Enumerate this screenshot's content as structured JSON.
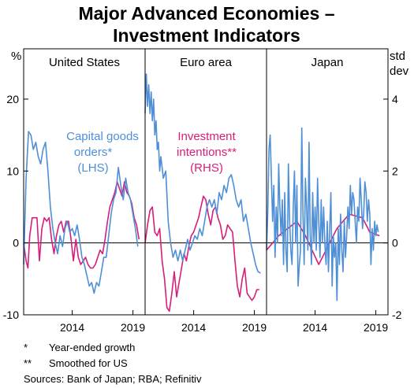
{
  "chart_data": {
    "type": "line",
    "title": [
      "Major Advanced Economies –",
      "Investment Indicators"
    ],
    "left_unit": "%",
    "right_unit": [
      "std",
      "dev"
    ],
    "left_ticks": [
      "20",
      "10",
      "0",
      "-10"
    ],
    "right_ticks": [
      "4",
      "2",
      "0",
      "-2"
    ],
    "left_range": [
      -10,
      27
    ],
    "right_range": [
      -2,
      5.4
    ],
    "x_range": [
      2010.0,
      2020.0
    ],
    "x_ticks": [
      {
        "value": 2014,
        "label": "2014"
      },
      {
        "value": 2019,
        "label": "2019"
      }
    ],
    "grid": "horizontal zero line",
    "colors": {
      "capital_goods": "#4f8fd6",
      "investment_intentions": "#d61e7a"
    },
    "annotations": {
      "capital_goods": [
        "Capital goods",
        "orders*",
        "(LHS)"
      ],
      "investment_intentions": [
        "Investment",
        "intentions**",
        "(RHS)"
      ]
    },
    "panels": [
      {
        "title": "United States",
        "capital_goods_orders_pct": [
          [
            2010.0,
            -3
          ],
          [
            2010.2,
            9
          ],
          [
            2010.4,
            15.5
          ],
          [
            2010.6,
            15
          ],
          [
            2010.8,
            13
          ],
          [
            2011.0,
            14
          ],
          [
            2011.2,
            12
          ],
          [
            2011.4,
            11
          ],
          [
            2011.6,
            13
          ],
          [
            2011.8,
            14
          ],
          [
            2012.0,
            10
          ],
          [
            2012.2,
            5
          ],
          [
            2012.4,
            2
          ],
          [
            2012.6,
            0
          ],
          [
            2012.8,
            -1.5
          ],
          [
            2013.0,
            1
          ],
          [
            2013.2,
            -0.5
          ],
          [
            2013.4,
            2
          ],
          [
            2013.6,
            3
          ],
          [
            2013.8,
            1.5
          ],
          [
            2014.0,
            2
          ],
          [
            2014.2,
            1
          ],
          [
            2014.4,
            2.5
          ],
          [
            2014.6,
            0.5
          ],
          [
            2014.8,
            -2
          ],
          [
            2015.0,
            -3
          ],
          [
            2015.2,
            -4.5
          ],
          [
            2015.4,
            -6
          ],
          [
            2015.6,
            -5.5
          ],
          [
            2015.8,
            -7
          ],
          [
            2016.0,
            -5.5
          ],
          [
            2016.2,
            -6
          ],
          [
            2016.4,
            -4
          ],
          [
            2016.6,
            -2
          ],
          [
            2016.8,
            -2
          ],
          [
            2017.0,
            1
          ],
          [
            2017.2,
            4
          ],
          [
            2017.4,
            6
          ],
          [
            2017.6,
            7
          ],
          [
            2017.8,
            10.5
          ],
          [
            2018.0,
            8
          ],
          [
            2018.2,
            6
          ],
          [
            2018.4,
            9
          ],
          [
            2018.6,
            7
          ],
          [
            2018.8,
            6
          ],
          [
            2019.0,
            4
          ],
          [
            2019.2,
            2
          ],
          [
            2019.4,
            -0.5
          ]
        ],
        "investment_intentions_std": [
          [
            2010.0,
            0
          ],
          [
            2010.2,
            -0.5
          ],
          [
            2010.35,
            -0.7
          ],
          [
            2010.5,
            0.2
          ],
          [
            2010.7,
            0.7
          ],
          [
            2010.9,
            0.7
          ],
          [
            2011.1,
            0.7
          ],
          [
            2011.3,
            -0.5
          ],
          [
            2011.5,
            0.4
          ],
          [
            2011.7,
            0.7
          ],
          [
            2011.9,
            0.6
          ],
          [
            2012.1,
            0.7
          ],
          [
            2012.3,
            0.1
          ],
          [
            2012.5,
            -0.3
          ],
          [
            2012.7,
            0.2
          ],
          [
            2012.9,
            0.5
          ],
          [
            2013.1,
            0.6
          ],
          [
            2013.3,
            0.3
          ],
          [
            2013.5,
            0.6
          ],
          [
            2013.7,
            0.6
          ],
          [
            2013.9,
            0.1
          ],
          [
            2014.1,
            -0.5
          ],
          [
            2014.3,
            0.1
          ],
          [
            2014.5,
            -0.4
          ],
          [
            2014.7,
            -0.6
          ],
          [
            2014.9,
            -0.5
          ],
          [
            2015.1,
            -0.4
          ],
          [
            2015.3,
            -0.6
          ],
          [
            2015.5,
            -0.7
          ],
          [
            2015.7,
            -0.7
          ],
          [
            2015.9,
            -0.6
          ],
          [
            2016.1,
            -0.4
          ],
          [
            2016.3,
            -0.2
          ],
          [
            2016.5,
            -0.3
          ],
          [
            2016.7,
            0.1
          ],
          [
            2016.9,
            0.6
          ],
          [
            2017.1,
            1.0
          ],
          [
            2017.3,
            1.2
          ],
          [
            2017.5,
            1.4
          ],
          [
            2017.7,
            1.7
          ],
          [
            2017.9,
            1.5
          ],
          [
            2018.1,
            1.3
          ],
          [
            2018.3,
            1.7
          ],
          [
            2018.5,
            1.4
          ],
          [
            2018.7,
            1.3
          ],
          [
            2018.9,
            1.1
          ],
          [
            2019.1,
            0.7
          ],
          [
            2019.3,
            0.5
          ],
          [
            2019.5,
            0.1
          ]
        ]
      },
      {
        "title": "Euro area",
        "capital_goods_orders_pct": [
          [
            2010.0,
            18
          ],
          [
            2010.1,
            23.5
          ],
          [
            2010.2,
            19
          ],
          [
            2010.3,
            22
          ],
          [
            2010.4,
            18
          ],
          [
            2010.5,
            21
          ],
          [
            2010.6,
            17
          ],
          [
            2010.7,
            20
          ],
          [
            2010.8,
            15
          ],
          [
            2010.9,
            17
          ],
          [
            2011.0,
            13
          ],
          [
            2011.1,
            14
          ],
          [
            2011.2,
            10
          ],
          [
            2011.3,
            12
          ],
          [
            2011.5,
            9
          ],
          [
            2011.7,
            10
          ],
          [
            2011.9,
            3
          ],
          [
            2012.1,
            0
          ],
          [
            2012.3,
            -2
          ],
          [
            2012.5,
            -1
          ],
          [
            2012.7,
            -2.5
          ],
          [
            2012.9,
            -1
          ],
          [
            2013.1,
            -2.5
          ],
          [
            2013.3,
            -1
          ],
          [
            2013.5,
            0.5
          ],
          [
            2013.7,
            -1
          ],
          [
            2013.9,
            0
          ],
          [
            2014.1,
            1
          ],
          [
            2014.3,
            0.5
          ],
          [
            2014.5,
            2
          ],
          [
            2014.7,
            1
          ],
          [
            2014.9,
            3
          ],
          [
            2015.1,
            5
          ],
          [
            2015.3,
            6
          ],
          [
            2015.5,
            5
          ],
          [
            2015.7,
            6
          ],
          [
            2015.9,
            4
          ],
          [
            2016.1,
            7
          ],
          [
            2016.3,
            6
          ],
          [
            2016.5,
            8
          ],
          [
            2016.7,
            7
          ],
          [
            2016.9,
            9
          ],
          [
            2017.1,
            9.5
          ],
          [
            2017.3,
            8
          ],
          [
            2017.5,
            6
          ],
          [
            2017.7,
            5
          ],
          [
            2017.9,
            6
          ],
          [
            2018.1,
            3
          ],
          [
            2018.3,
            4
          ],
          [
            2018.5,
            2
          ],
          [
            2018.7,
            0
          ],
          [
            2018.9,
            -1.5
          ],
          [
            2019.1,
            -3
          ],
          [
            2019.3,
            -4
          ],
          [
            2019.5,
            -4.2
          ]
        ],
        "investment_intentions_std": [
          [
            2010.0,
            0
          ],
          [
            2010.2,
            0.5
          ],
          [
            2010.4,
            0.9
          ],
          [
            2010.6,
            1.0
          ],
          [
            2010.8,
            0.3
          ],
          [
            2011.0,
            0.2
          ],
          [
            2011.2,
            0.4
          ],
          [
            2011.4,
            -0.5
          ],
          [
            2011.6,
            -1.0
          ],
          [
            2011.8,
            -1.8
          ],
          [
            2012.0,
            -1.9
          ],
          [
            2012.2,
            -1.4
          ],
          [
            2012.4,
            -0.8
          ],
          [
            2012.6,
            -1.5
          ],
          [
            2012.8,
            -1.1
          ],
          [
            2013.0,
            -0.7
          ],
          [
            2013.2,
            -0.3
          ],
          [
            2013.4,
            -0.5
          ],
          [
            2013.6,
            -0.1
          ],
          [
            2013.8,
            0.2
          ],
          [
            2014.0,
            0.3
          ],
          [
            2014.2,
            0.5
          ],
          [
            2014.4,
            0.7
          ],
          [
            2014.6,
            1.0
          ],
          [
            2014.8,
            1.3
          ],
          [
            2015.0,
            1.2
          ],
          [
            2015.2,
            0.8
          ],
          [
            2015.4,
            0.5
          ],
          [
            2015.6,
            0.9
          ],
          [
            2015.8,
            1.0
          ],
          [
            2016.0,
            0.7
          ],
          [
            2016.2,
            0.5
          ],
          [
            2016.4,
            0.1
          ],
          [
            2016.6,
            0.2
          ],
          [
            2016.8,
            0.5
          ],
          [
            2017.0,
            0.4
          ],
          [
            2017.2,
            0.3
          ],
          [
            2017.4,
            -0.5
          ],
          [
            2017.6,
            -1.2
          ],
          [
            2017.8,
            -1.5
          ],
          [
            2018.0,
            -1.0
          ],
          [
            2018.2,
            -0.7
          ],
          [
            2018.4,
            -1.4
          ],
          [
            2018.6,
            -1.5
          ],
          [
            2018.8,
            -1.6
          ],
          [
            2019.0,
            -1.5
          ],
          [
            2019.2,
            -1.3
          ],
          [
            2019.4,
            -1.3
          ]
        ]
      },
      {
        "title": "Japan",
        "capital_goods_orders_pct": [
          [
            2010.0,
            -1
          ],
          [
            2010.1,
            4
          ],
          [
            2010.2,
            13
          ],
          [
            2010.3,
            15
          ],
          [
            2010.4,
            9
          ],
          [
            2010.5,
            3
          ],
          [
            2010.6,
            8
          ],
          [
            2010.7,
            -2
          ],
          [
            2010.8,
            5
          ],
          [
            2010.9,
            0
          ],
          [
            2011.0,
            11
          ],
          [
            2011.1,
            5
          ],
          [
            2011.2,
            1
          ],
          [
            2011.3,
            6
          ],
          [
            2011.4,
            -3
          ],
          [
            2011.5,
            7
          ],
          [
            2011.6,
            -1
          ],
          [
            2011.7,
            -4
          ],
          [
            2011.8,
            11
          ],
          [
            2011.9,
            3
          ],
          [
            2012.0,
            -1
          ],
          [
            2012.1,
            -3
          ],
          [
            2012.2,
            5
          ],
          [
            2012.3,
            10
          ],
          [
            2012.4,
            0
          ],
          [
            2012.5,
            8
          ],
          [
            2012.6,
            -6
          ],
          [
            2012.7,
            -3
          ],
          [
            2012.8,
            -1
          ],
          [
            2012.9,
            16
          ],
          [
            2013.0,
            4
          ],
          [
            2013.1,
            -3
          ],
          [
            2013.2,
            9
          ],
          [
            2013.3,
            5
          ],
          [
            2013.4,
            -1
          ],
          [
            2013.5,
            14
          ],
          [
            2013.6,
            1
          ],
          [
            2013.7,
            -3
          ],
          [
            2013.8,
            7
          ],
          [
            2013.9,
            0
          ],
          [
            2014.0,
            5
          ],
          [
            2014.1,
            -1
          ],
          [
            2014.2,
            9
          ],
          [
            2014.3,
            3
          ],
          [
            2014.4,
            -2
          ],
          [
            2014.5,
            6
          ],
          [
            2014.6,
            0
          ],
          [
            2014.7,
            5
          ],
          [
            2014.8,
            0
          ],
          [
            2014.9,
            -3
          ],
          [
            2015.0,
            3
          ],
          [
            2015.1,
            -4
          ],
          [
            2015.2,
            2
          ],
          [
            2015.3,
            7
          ],
          [
            2015.4,
            -6
          ],
          [
            2015.5,
            1
          ],
          [
            2015.6,
            -2
          ],
          [
            2015.7,
            0
          ],
          [
            2015.8,
            -8
          ],
          [
            2015.9,
            2
          ],
          [
            2016.0,
            -3
          ],
          [
            2016.1,
            4
          ],
          [
            2016.2,
            -1
          ],
          [
            2016.3,
            -4
          ],
          [
            2016.4,
            3
          ],
          [
            2016.5,
            -2
          ],
          [
            2016.6,
            1
          ],
          [
            2016.7,
            5
          ],
          [
            2016.8,
            2
          ],
          [
            2016.9,
            8
          ],
          [
            2017.0,
            4
          ],
          [
            2017.1,
            7
          ],
          [
            2017.2,
            6
          ],
          [
            2017.3,
            3
          ],
          [
            2017.4,
            0
          ],
          [
            2017.5,
            5
          ],
          [
            2017.6,
            3
          ],
          [
            2017.7,
            9
          ],
          [
            2017.8,
            6
          ],
          [
            2017.9,
            2
          ],
          [
            2018.0,
            4
          ],
          [
            2018.1,
            8.5
          ],
          [
            2018.2,
            7
          ],
          [
            2018.3,
            3
          ],
          [
            2018.4,
            6
          ],
          [
            2018.5,
            4
          ],
          [
            2018.6,
            -3
          ],
          [
            2018.7,
            2
          ],
          [
            2018.8,
            -1
          ],
          [
            2018.9,
            3
          ],
          [
            2019.0,
            1
          ],
          [
            2019.1,
            2.5
          ],
          [
            2019.2,
            1.5
          ]
        ],
        "investment_intentions_std": [
          [
            2010.0,
            -0.2
          ],
          [
            2011.0,
            0.2
          ],
          [
            2012.5,
            0.6
          ],
          [
            2013.2,
            0.2
          ],
          [
            2014.3,
            -0.6
          ],
          [
            2015.8,
            0.4
          ],
          [
            2016.8,
            0.8
          ],
          [
            2017.9,
            0.7
          ],
          [
            2018.5,
            0.3
          ],
          [
            2019.3,
            0.2
          ]
        ]
      }
    ],
    "footnotes": [
      {
        "marker": "*",
        "text": "Year-ended growth"
      },
      {
        "marker": "**",
        "text": "Smoothed for US"
      }
    ],
    "sources": "Sources: Bank of Japan; RBA; Refinitiv"
  }
}
